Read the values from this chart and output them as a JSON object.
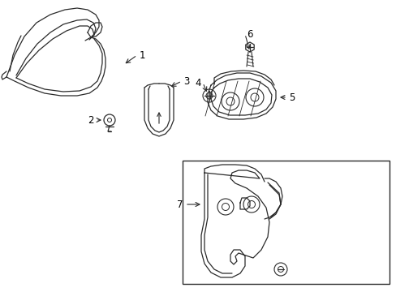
{
  "background_color": "#ffffff",
  "line_color": "#2a2a2a",
  "label_color": "#000000",
  "fig_width": 4.89,
  "fig_height": 3.6,
  "dpi": 100,
  "font_size": 8.5
}
